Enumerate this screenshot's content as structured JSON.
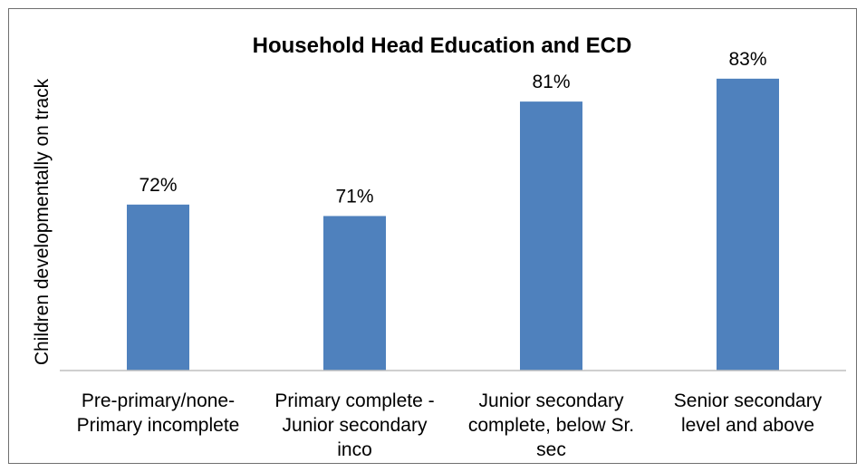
{
  "chart_data": {
    "type": "bar",
    "title": "Household Head Education and ECD",
    "xlabel": "",
    "ylabel": "Children developmentally on track",
    "categories": [
      [
        "Pre-primary/none-",
        "Primary incomplete"
      ],
      [
        "Primary complete -",
        "Junior secondary",
        "inco"
      ],
      [
        "Junior secondary",
        "complete, below Sr.",
        "sec"
      ],
      [
        "Senior secondary",
        "level and above"
      ]
    ],
    "values": [
      72,
      71,
      81,
      83
    ],
    "value_labels": [
      "72%",
      "71%",
      "81%",
      "83%"
    ],
    "ylim": [
      57.5,
      87.5
    ],
    "grid": false,
    "legend": "none",
    "bar_color": "#4f81bd",
    "axis_color": "#bfbfbf"
  }
}
